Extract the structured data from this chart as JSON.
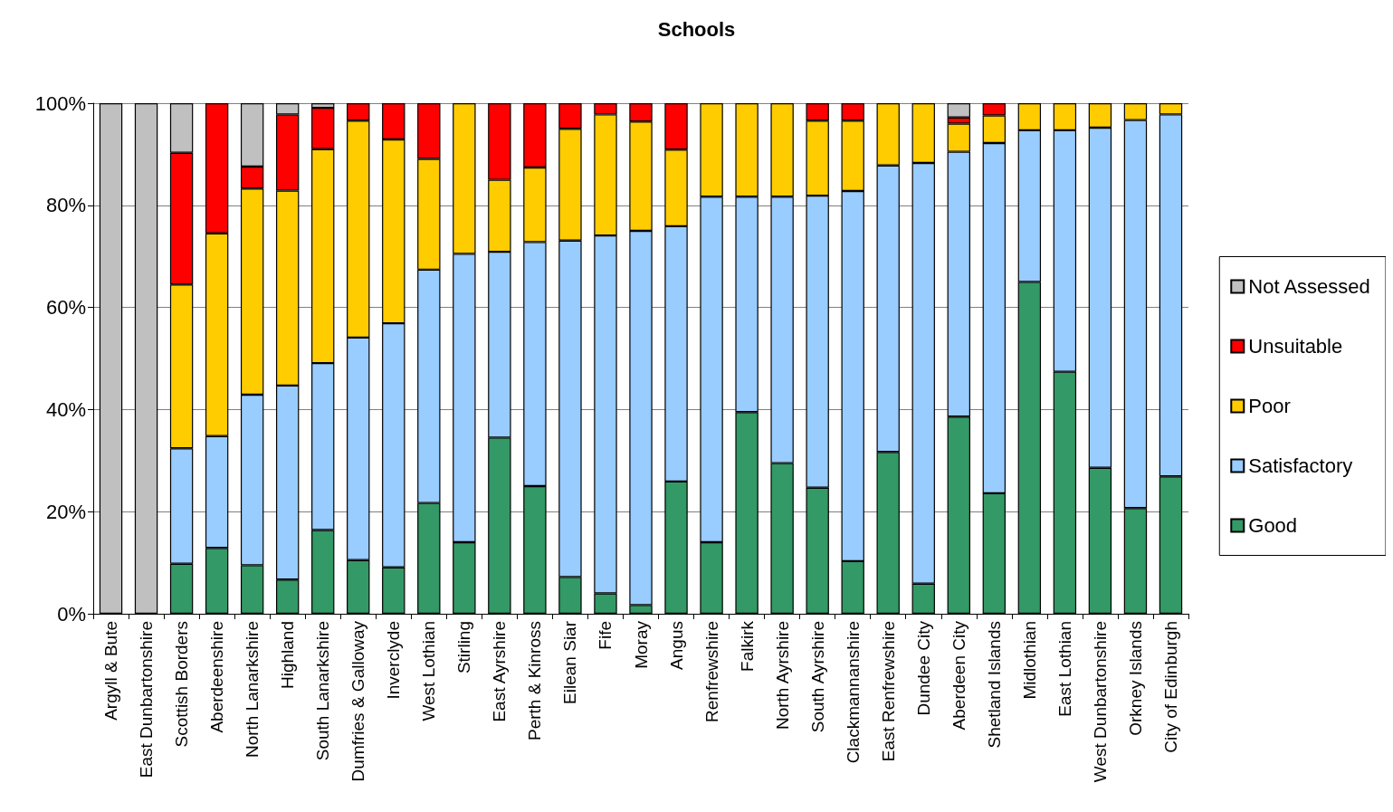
{
  "chart_data": {
    "type": "bar",
    "title": "Schools",
    "stacked": true,
    "categories": [
      "Argyll & Bute",
      "East Dunbartonshire",
      "Scottish Borders",
      "Aberdeenshire",
      "North Lanarkshire",
      "Highland",
      "South Lanarkshire",
      "Dumfries & Galloway",
      "Inverclyde",
      "West Lothian",
      "Stirling",
      "East Ayrshire",
      "Perth & Kinross",
      "Eilean Siar",
      "Fife",
      "Moray",
      "Angus",
      "Renfrewshire",
      "Falkirk",
      "North Ayrshire",
      "South Ayrshire",
      "Clackmannanshire",
      "East Renfrewshire",
      "Dundee City",
      "Aberdeen City",
      "Shetland Islands",
      "Midlothian",
      "East Lothian",
      "West Dunbartonshire",
      "Orkney Islands",
      "City of Edinburgh"
    ],
    "series": [
      {
        "name": "Good",
        "color": "#339966",
        "values": [
          0,
          0,
          9.8,
          12.9,
          9.5,
          6.7,
          16.4,
          10.5,
          9.1,
          21.7,
          14.0,
          34.5,
          25.0,
          7.2,
          4.0,
          1.7,
          25.9,
          14.0,
          39.5,
          29.5,
          24.7,
          10.3,
          31.7,
          5.9,
          38.6,
          23.6,
          65.0,
          47.4,
          28.6,
          20.7,
          26.9
        ]
      },
      {
        "name": "Satisfactory",
        "color": "#99ccff",
        "values": [
          0,
          0,
          22.6,
          21.9,
          33.4,
          38.0,
          32.7,
          43.6,
          47.8,
          45.7,
          56.5,
          36.4,
          47.8,
          65.9,
          70.1,
          73.3,
          50.0,
          67.7,
          42.2,
          52.2,
          57.2,
          72.5,
          56.1,
          82.4,
          51.9,
          68.6,
          29.7,
          47.3,
          66.6,
          76.0,
          70.9
        ]
      },
      {
        "name": "Poor",
        "color": "#ffcc00",
        "values": [
          0,
          0,
          32.1,
          39.7,
          40.4,
          38.2,
          41.9,
          42.5,
          36.0,
          21.7,
          29.5,
          14.1,
          14.6,
          21.9,
          23.7,
          21.4,
          15.0,
          18.3,
          18.3,
          18.3,
          14.7,
          13.8,
          12.2,
          11.7,
          5.5,
          5.4,
          5.3,
          5.3,
          4.8,
          3.3,
          2.2
        ]
      },
      {
        "name": "Unsuitable",
        "color": "#ff0000",
        "values": [
          0,
          0,
          25.8,
          25.5,
          4.3,
          14.9,
          8.1,
          3.4,
          7.1,
          10.9,
          0,
          15.0,
          12.6,
          5.0,
          2.2,
          3.6,
          9.1,
          0,
          0,
          0,
          3.4,
          3.4,
          0,
          0,
          1.2,
          2.4,
          0,
          0,
          0,
          0,
          0
        ]
      },
      {
        "name": "Not Assessed",
        "color": "#c0c0c0",
        "values": [
          100,
          100,
          9.7,
          0,
          12.4,
          2.2,
          0.9,
          0,
          0,
          0,
          0,
          0,
          0,
          0,
          0,
          0,
          0,
          0,
          0,
          0,
          0,
          0,
          0,
          0,
          2.8,
          0,
          0,
          0,
          0,
          0,
          0
        ]
      }
    ],
    "ylim": [
      0,
      100
    ],
    "yticks": [
      {
        "value": 0,
        "label": "0%"
      },
      {
        "value": 20,
        "label": "20%"
      },
      {
        "value": 40,
        "label": "40%"
      },
      {
        "value": 60,
        "label": "60%"
      },
      {
        "value": 80,
        "label": "80%"
      },
      {
        "value": 100,
        "label": "100%"
      }
    ],
    "grid": "y",
    "legend": "right"
  }
}
